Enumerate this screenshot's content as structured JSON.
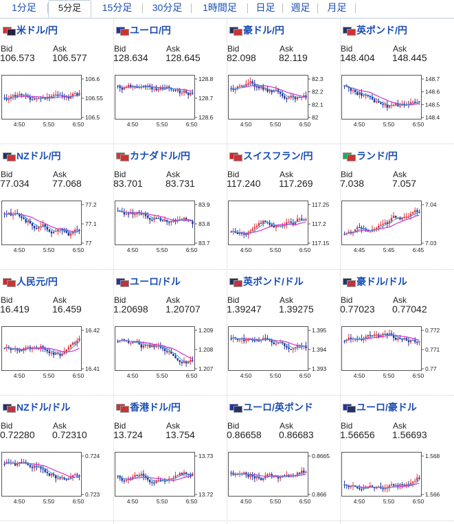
{
  "tabs": [
    {
      "label": "1分足",
      "active": false
    },
    {
      "label": "5分足",
      "active": true
    },
    {
      "label": "15分足",
      "active": false
    },
    {
      "label": "30分足",
      "active": false
    },
    {
      "label": "1時間足",
      "active": false
    },
    {
      "label": "日足",
      "active": false
    },
    {
      "label": "週足",
      "active": false
    },
    {
      "label": "月足",
      "active": false
    }
  ],
  "labels": {
    "bid": "Bid",
    "ask": "Ask"
  },
  "pairs": [
    {
      "name": "米ドル/円",
      "flags": [
        "#c33",
        "#224"
      ],
      "bid": "106.573",
      "ask": "106.577",
      "yticks": [
        "106.6",
        "106.55",
        "106.5"
      ],
      "xticks": [
        "4:50",
        "5:50",
        "6:50"
      ],
      "trend": "flat"
    },
    {
      "name": "ユーロ/円",
      "flags": [
        "#23a",
        "#c33"
      ],
      "bid": "128.634",
      "ask": "128.645",
      "yticks": [
        "128.8",
        "128.7",
        "128.6"
      ],
      "xticks": [
        "4:50",
        "5:50",
        "6:50"
      ],
      "trend": "down"
    },
    {
      "name": "豪ドル/円",
      "flags": [
        "#236",
        "#c33"
      ],
      "bid": "82.098",
      "ask": "82.119",
      "yticks": [
        "82.3",
        "82.2",
        "82.1",
        "82"
      ],
      "xticks": [
        "4:50",
        "5:50",
        "6:50"
      ],
      "trend": "down"
    },
    {
      "name": "英ポンド/円",
      "flags": [
        "#236",
        "#c33"
      ],
      "bid": "148.404",
      "ask": "148.445",
      "yticks": [
        "148.7",
        "148.6",
        "148.5",
        "148.4"
      ],
      "xticks": [
        "4:50",
        "5:50",
        "6:50"
      ],
      "trend": "down"
    },
    {
      "name": "NZドル/円",
      "flags": [
        "#236",
        "#c33"
      ],
      "bid": "77.034",
      "ask": "77.068",
      "yticks": [
        "77.2",
        "77.1",
        "77"
      ],
      "xticks": [
        "4:50",
        "5:50",
        "6:50"
      ],
      "trend": "down"
    },
    {
      "name": "カナダドル/円",
      "flags": [
        "#d33",
        "#c33"
      ],
      "bid": "83.701",
      "ask": "83.731",
      "yticks": [
        "83.9",
        "83.8",
        "83.7"
      ],
      "xticks": [
        "4:50",
        "5:50",
        "6:50"
      ],
      "trend": "down"
    },
    {
      "name": "スイスフラン/円",
      "flags": [
        "#d22",
        "#c33"
      ],
      "bid": "117.240",
      "ask": "117.269",
      "yticks": [
        "117.25",
        "117.2",
        "117.15"
      ],
      "xticks": [
        "4:50",
        "5:50",
        "6:50"
      ],
      "trend": "up"
    },
    {
      "name": "ランド/円",
      "flags": [
        "#2a5",
        "#c33"
      ],
      "bid": "7.038",
      "ask": "7.057",
      "yticks": [
        "7.04",
        "7.03"
      ],
      "xticks": [
        "4:45",
        "5:45",
        "6:45"
      ],
      "trend": "up"
    },
    {
      "name": "人民元/円",
      "flags": [
        "#d22",
        "#c33"
      ],
      "bid": "16.419",
      "ask": "16.459",
      "yticks": [
        "16.42",
        "16.41"
      ],
      "xticks": [
        "4:50",
        "5:50",
        "6:50"
      ],
      "trend": "flat"
    },
    {
      "name": "ユーロ/ドル",
      "flags": [
        "#23a",
        "#b34"
      ],
      "bid": "1.20698",
      "ask": "1.20707",
      "yticks": [
        "1.209",
        "1.208",
        "1.207"
      ],
      "xticks": [
        "4:50",
        "5:50",
        "6:50"
      ],
      "trend": "down"
    },
    {
      "name": "英ポンド/ドル",
      "flags": [
        "#236",
        "#b34"
      ],
      "bid": "1.39247",
      "ask": "1.39275",
      "yticks": [
        "1.395",
        "1.394",
        "1.393"
      ],
      "xticks": [
        "4:50",
        "5:50",
        "6:50"
      ],
      "trend": "down"
    },
    {
      "name": "豪ドル/ドル",
      "flags": [
        "#236",
        "#b34"
      ],
      "bid": "0.77023",
      "ask": "0.77042",
      "yticks": [
        "0.772",
        "0.771",
        "0.77"
      ],
      "xticks": [
        "4:50",
        "5:50",
        "6:50"
      ],
      "trend": "down"
    },
    {
      "name": "NZドル/ドル",
      "flags": [
        "#236",
        "#b34"
      ],
      "bid": "0.72280",
      "ask": "0.72310",
      "yticks": [
        "0.724",
        "0.723"
      ],
      "xticks": [
        "4:50",
        "5:50",
        "6:50"
      ],
      "trend": "down"
    },
    {
      "name": "香港ドル/円",
      "flags": [
        "#c33",
        "#c33"
      ],
      "bid": "13.724",
      "ask": "13.754",
      "yticks": [
        "13.73",
        "13.72"
      ],
      "xticks": [
        "4:50",
        "5:50",
        "6:50"
      ],
      "trend": "flat"
    },
    {
      "name": "ユーロ/英ポンド",
      "flags": [
        "#23a",
        "#236"
      ],
      "bid": "0.86658",
      "ask": "0.86683",
      "yticks": [
        "0.8665",
        "0.866"
      ],
      "xticks": [
        "4:50",
        "5:50",
        "6:50"
      ],
      "trend": "flat"
    },
    {
      "name": "ユーロ/豪ドル",
      "flags": [
        "#23a",
        "#236"
      ],
      "bid": "1.56656",
      "ask": "1.56693",
      "yticks": [
        "1.568",
        "1.566"
      ],
      "xticks": [
        "4:50",
        "5:50",
        "6:50"
      ],
      "trend": "up"
    }
  ],
  "colors": {
    "link": "#1a4db3",
    "up": "#e0303a",
    "down": "#1f2f9a",
    "ma": "#cc33cc",
    "ma2": "#33a0dd"
  }
}
